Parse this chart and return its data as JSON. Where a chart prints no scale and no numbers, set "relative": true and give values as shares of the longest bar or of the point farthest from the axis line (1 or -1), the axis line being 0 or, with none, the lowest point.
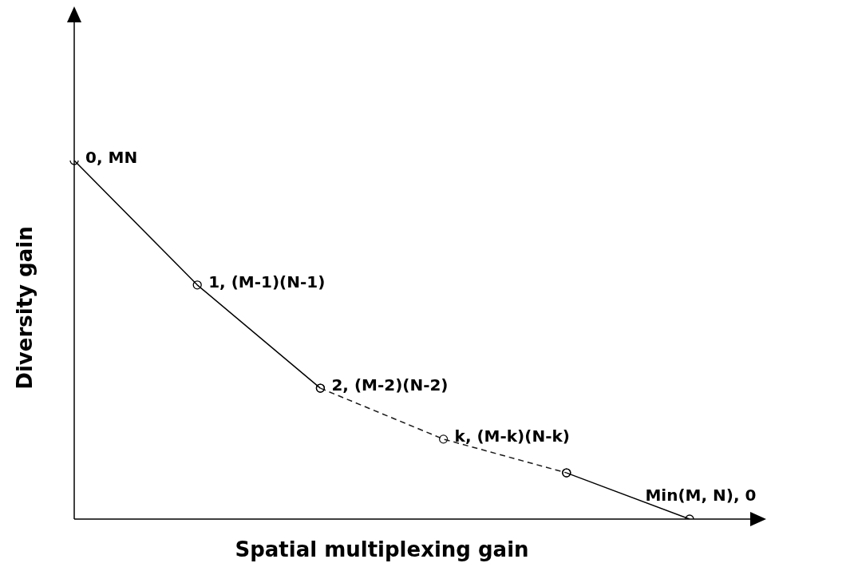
{
  "chart_data": {
    "type": "line",
    "relative": true,
    "xlabel": "Spatial multiplexing gain",
    "ylabel": "Diversity gain",
    "legend": false,
    "marker": "circle",
    "categories": [
      null,
      null,
      null,
      null,
      null,
      null
    ],
    "series": [
      {
        "color": "#000000",
        "line_style": "solid",
        "values": [
          1,
          0.653,
          0.365,
          null,
          0.129,
          0
        ]
      },
      {
        "color": "#1a1a1a",
        "line_style": "dashed",
        "values": [
          null,
          null,
          0.365,
          0.223,
          0.129,
          null
        ]
      }
    ],
    "annotations": [
      "0, MN",
      "1, (M-1)(N-1)",
      "2, (M-2)(N-2)",
      "k, (M-k)(N-k)",
      "Min(M, N), 0"
    ]
  }
}
